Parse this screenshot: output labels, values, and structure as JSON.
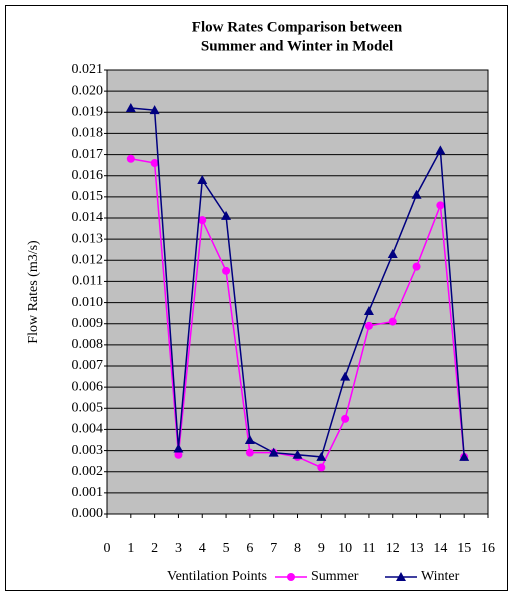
{
  "chart_data": {
    "type": "line",
    "title": [
      "Flow Rates Comparison between",
      "Summer and Winter in Model"
    ],
    "x_label": "Ventilation Points",
    "y_label": "Flow Rates (m3/s)",
    "x": [
      1,
      2,
      3,
      4,
      5,
      6,
      7,
      8,
      9,
      10,
      11,
      12,
      13,
      14,
      15
    ],
    "series": [
      {
        "name": "Summer",
        "color": "#ff00ff",
        "marker": "circle",
        "values": [
          0.0168,
          0.0166,
          0.0028,
          0.0139,
          0.0115,
          0.0029,
          0.0029,
          0.0027,
          0.0022,
          0.0045,
          0.0089,
          0.0091,
          0.0117,
          0.0146,
          0.0027
        ]
      },
      {
        "name": "Winter",
        "color": "#000080",
        "marker": "triangle",
        "values": [
          0.0192,
          0.0191,
          0.0031,
          0.0158,
          0.0141,
          0.0035,
          0.0029,
          0.0028,
          0.0027,
          0.0065,
          0.0096,
          0.0123,
          0.0151,
          0.0172,
          0.0027
        ]
      }
    ],
    "xlim": [
      0,
      16
    ],
    "xticks": [
      0,
      1,
      2,
      3,
      4,
      5,
      6,
      7,
      8,
      9,
      10,
      11,
      12,
      13,
      14,
      15,
      16
    ],
    "ylim": [
      0,
      0.021
    ],
    "yticks": [
      {
        "value": 0,
        "label": "0.000"
      },
      0.001,
      0.002,
      0.003,
      0.004,
      0.005,
      0.006,
      0.007,
      0.008,
      0.009,
      {
        "value": 0.01,
        "label": "0.010"
      },
      0.011,
      0.012,
      0.013,
      0.014,
      0.015,
      0.016,
      0.017,
      0.018,
      0.019,
      {
        "value": 0.02,
        "label": "0.020"
      },
      0.021
    ],
    "grid": true,
    "legend": "bottom",
    "plot_background": "#c0c0c0"
  }
}
